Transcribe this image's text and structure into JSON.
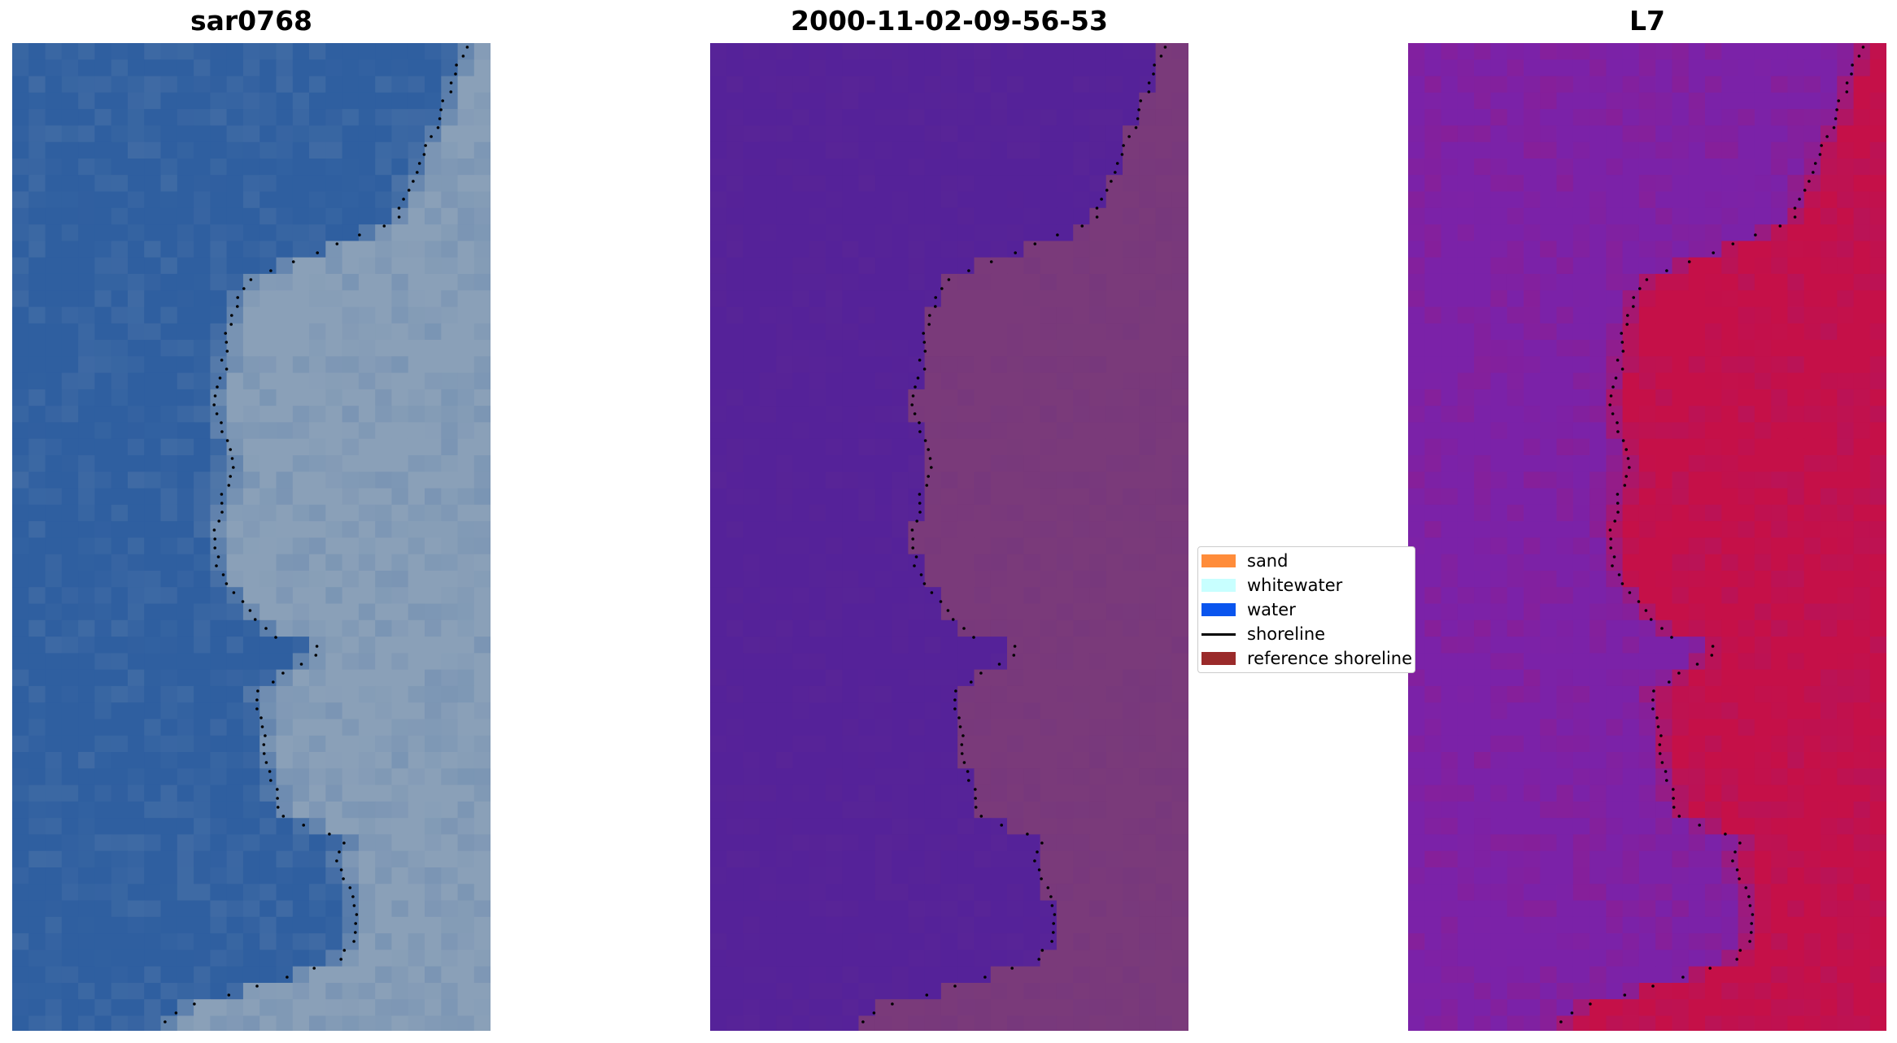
{
  "panels": [
    {
      "title": "sar0768",
      "view": "rgb-composite"
    },
    {
      "title": "2000-11-02-09-56-53",
      "view": "classified-overlay"
    },
    {
      "title": "L7",
      "view": "index-map"
    }
  ],
  "legend": {
    "items": [
      {
        "label": "sand",
        "color": "#ff8c3a",
        "kind": "patch"
      },
      {
        "label": "whitewater",
        "color": "#c8ffff",
        "kind": "patch"
      },
      {
        "label": "water",
        "color": "#0a55ee",
        "kind": "patch"
      },
      {
        "label": "shoreline",
        "color": "#000000",
        "kind": "line"
      },
      {
        "label": "reference shoreline",
        "color": "#9a2a2a",
        "kind": "patch"
      }
    ]
  },
  "colors": {
    "rgb_water": "#2f5fa0",
    "rgb_land": "#8aa0b8",
    "class_water": "#552299",
    "class_land": "#7a3a7a",
    "index_water": "#7b22a8",
    "index_land": "#c51048",
    "shoreline_dots": "#000000"
  }
}
